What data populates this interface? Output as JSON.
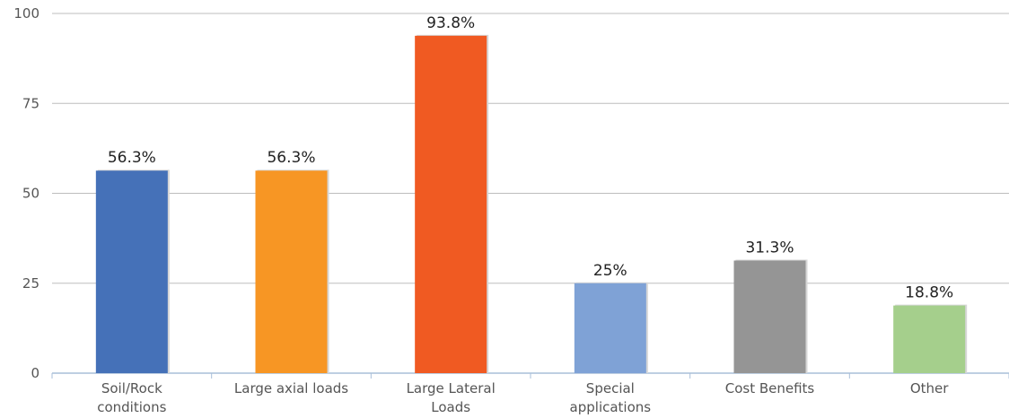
{
  "chart_data": {
    "type": "bar",
    "categories": [
      [
        "Soil/Rock",
        "conditions"
      ],
      [
        "Large axial loads"
      ],
      [
        "Large Lateral",
        "Loads"
      ],
      [
        "Special",
        "applications"
      ],
      [
        "Cost Benefits"
      ],
      [
        "Other"
      ]
    ],
    "values": [
      56.3,
      56.3,
      93.8,
      25,
      31.3,
      18.8
    ],
    "data_labels": [
      "56.3%",
      "56.3%",
      "93.8%",
      "25%",
      "31.3%",
      "18.8%"
    ],
    "colors": [
      "#4571b8",
      "#f79624",
      "#f05a22",
      "#7fa2d6",
      "#959595",
      "#a5cf8c"
    ],
    "yticks": [
      0,
      25,
      50,
      75,
      100
    ],
    "ylim": [
      0,
      100
    ],
    "grid": true,
    "legend": "none"
  }
}
